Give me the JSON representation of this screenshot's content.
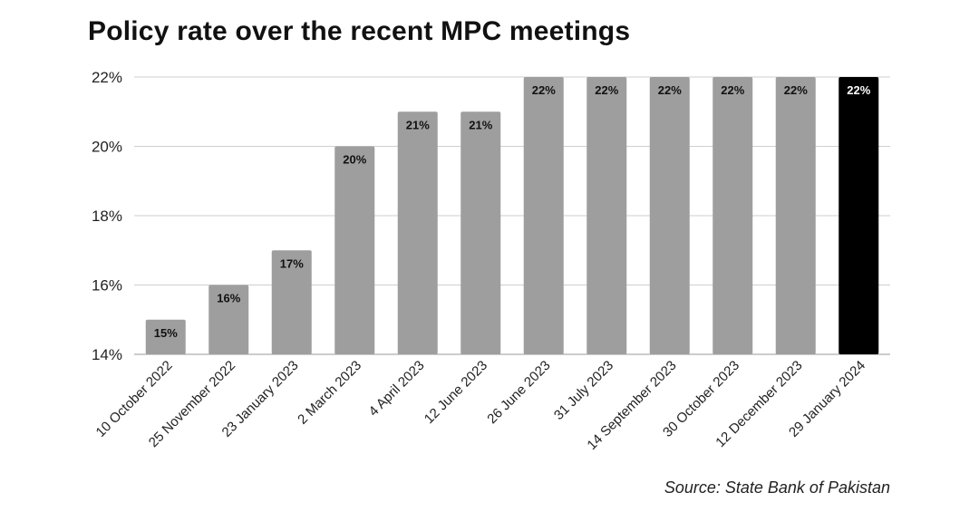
{
  "chart_data": {
    "type": "bar",
    "title": "Policy rate over the recent MPC meetings",
    "source": "Source: State Bank of Pakistan",
    "categories": [
      "10 October 2022",
      "25 November 2022",
      "23 January 2023",
      "2 March 2023",
      "4 April 2023",
      "12 June 2023",
      "26 June 2023",
      "31 July 2023",
      "14 September 2023",
      "30 October 2023",
      "12 December 2023",
      "29 January 2024"
    ],
    "values": [
      15,
      16,
      17,
      20,
      21,
      21,
      22,
      22,
      22,
      22,
      22,
      22
    ],
    "value_labels": [
      "15%",
      "16%",
      "17%",
      "20%",
      "21%",
      "21%",
      "22%",
      "22%",
      "22%",
      "22%",
      "22%",
      "22%"
    ],
    "ylim": [
      14,
      22
    ],
    "yticks": [
      14,
      16,
      18,
      20,
      22
    ],
    "ytick_labels": [
      "14%",
      "16%",
      "18%",
      "20%",
      "22%"
    ],
    "xlabel": "",
    "ylabel": "",
    "grid": true,
    "legend": "none",
    "bar_color": "#9e9e9e",
    "highlight_color": "#000000",
    "highlight_index": 11
  }
}
